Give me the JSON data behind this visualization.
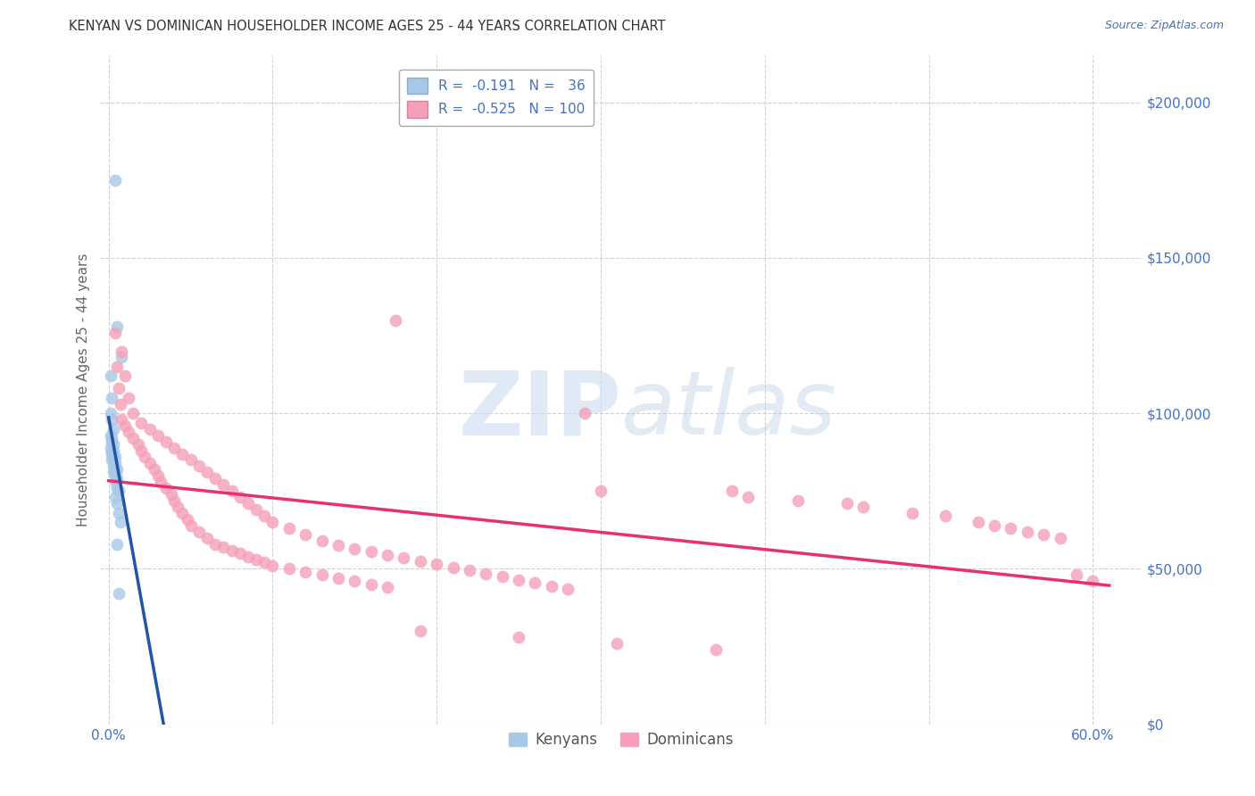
{
  "title": "KENYAN VS DOMINICAN HOUSEHOLDER INCOME AGES 25 - 44 YEARS CORRELATION CHART",
  "source": "Source: ZipAtlas.com",
  "ylabel": "Householder Income Ages 25 - 44 years",
  "xlabel_ticks": [
    "0.0%",
    "",
    "",
    "",
    "",
    "",
    "60.0%"
  ],
  "xlabel_vals": [
    0.0,
    0.1,
    0.2,
    0.3,
    0.4,
    0.5,
    0.6
  ],
  "ylabel_vals": [
    0,
    50000,
    100000,
    150000,
    200000
  ],
  "ylim": [
    0,
    215000
  ],
  "xlim": [
    -0.005,
    0.63
  ],
  "kenyan_R": -0.191,
  "kenyan_N": 36,
  "dominican_R": -0.525,
  "dominican_N": 100,
  "kenyan_color": "#a8c8e8",
  "dominican_color": "#f5a0b8",
  "kenyan_line_color": "#2255aa",
  "dominican_line_color": "#e83070",
  "kenyan_dashed_color": "#b0cce8",
  "background_color": "#ffffff",
  "grid_color": "#d0d0d0",
  "title_color": "#333333",
  "axis_label_color": "#666666",
  "right_ytick_color": "#4472c4",
  "watermark_color": "#ccddf0",
  "watermark_text": "ZIPatlas"
}
